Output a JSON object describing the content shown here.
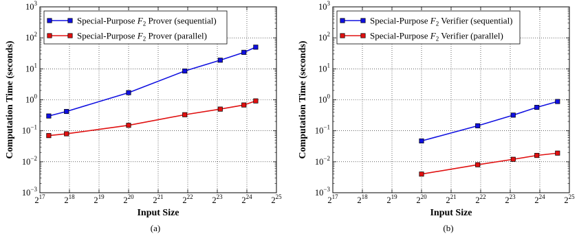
{
  "chart_data": [
    {
      "type": "line",
      "panel_label": "(a)",
      "xlabel": "Input Size",
      "ylabel": "Computation Time (seconds)",
      "xscale": "log2",
      "yscale": "log10",
      "xlim_exp": [
        17,
        25
      ],
      "ylim_exp": [
        -3,
        3
      ],
      "x_ticks": [
        {
          "base": "2",
          "exp": "17"
        },
        {
          "base": "2",
          "exp": "18"
        },
        {
          "base": "2",
          "exp": "19"
        },
        {
          "base": "2",
          "exp": "20"
        },
        {
          "base": "2",
          "exp": "21"
        },
        {
          "base": "2",
          "exp": "22"
        },
        {
          "base": "2",
          "exp": "23"
        },
        {
          "base": "2",
          "exp": "24"
        },
        {
          "base": "2",
          "exp": "25"
        }
      ],
      "y_ticks": [
        {
          "base": "10",
          "exp": "−3"
        },
        {
          "base": "10",
          "exp": "−2"
        },
        {
          "base": "10",
          "exp": "−1"
        },
        {
          "base": "10",
          "exp": "0"
        },
        {
          "base": "10",
          "exp": "1"
        },
        {
          "base": "10",
          "exp": "2"
        },
        {
          "base": "10",
          "exp": "3"
        }
      ],
      "grid": true,
      "legend_position": "top-left",
      "series": [
        {
          "legend": {
            "pre": "Special-Purpose ",
            "var": "F",
            "sub": "2",
            "post": " Prover (sequential)"
          },
          "color": "#1010e0",
          "x_exp": [
            17.3,
            17.9,
            20.0,
            21.9,
            23.1,
            23.9,
            24.3
          ],
          "y": [
            0.3,
            0.42,
            1.7,
            8.5,
            19,
            34,
            50
          ]
        },
        {
          "legend": {
            "pre": "Special-Purpose ",
            "var": "F",
            "sub": "2",
            "post": " Prover (parallel)"
          },
          "color": "#e01010",
          "x_exp": [
            17.3,
            17.9,
            20.0,
            21.9,
            23.1,
            23.9,
            24.3
          ],
          "y": [
            0.07,
            0.08,
            0.15,
            0.33,
            0.5,
            0.68,
            0.92
          ]
        }
      ]
    },
    {
      "type": "line",
      "panel_label": "(b)",
      "xlabel": "Input Size",
      "ylabel": "Computation Time (seconds)",
      "xscale": "log2",
      "yscale": "log10",
      "xlim_exp": [
        17,
        25
      ],
      "ylim_exp": [
        -3,
        3
      ],
      "x_ticks": [
        {
          "base": "2",
          "exp": "17"
        },
        {
          "base": "2",
          "exp": "18"
        },
        {
          "base": "2",
          "exp": "19"
        },
        {
          "base": "2",
          "exp": "20"
        },
        {
          "base": "2",
          "exp": "21"
        },
        {
          "base": "2",
          "exp": "22"
        },
        {
          "base": "2",
          "exp": "23"
        },
        {
          "base": "2",
          "exp": "24"
        },
        {
          "base": "2",
          "exp": "25"
        }
      ],
      "y_ticks": [
        {
          "base": "10",
          "exp": "−3"
        },
        {
          "base": "10",
          "exp": "−2"
        },
        {
          "base": "10",
          "exp": "−1"
        },
        {
          "base": "10",
          "exp": "0"
        },
        {
          "base": "10",
          "exp": "1"
        },
        {
          "base": "10",
          "exp": "2"
        },
        {
          "base": "10",
          "exp": "3"
        }
      ],
      "grid": true,
      "legend_position": "top-left",
      "series": [
        {
          "legend": {
            "pre": "Special-Purpose ",
            "var": "F",
            "sub": "2",
            "post": " Verifier (sequential)"
          },
          "color": "#1010e0",
          "x_exp": [
            20.0,
            21.9,
            23.1,
            23.9,
            24.6
          ],
          "y": [
            0.047,
            0.145,
            0.32,
            0.57,
            0.88
          ]
        },
        {
          "legend": {
            "pre": "Special-Purpose ",
            "var": "F",
            "sub": "2",
            "post": " Verifier (parallel)"
          },
          "color": "#e01010",
          "x_exp": [
            20.0,
            21.9,
            23.1,
            23.9,
            24.6
          ],
          "y": [
            0.004,
            0.008,
            0.012,
            0.016,
            0.019
          ]
        }
      ]
    }
  ]
}
